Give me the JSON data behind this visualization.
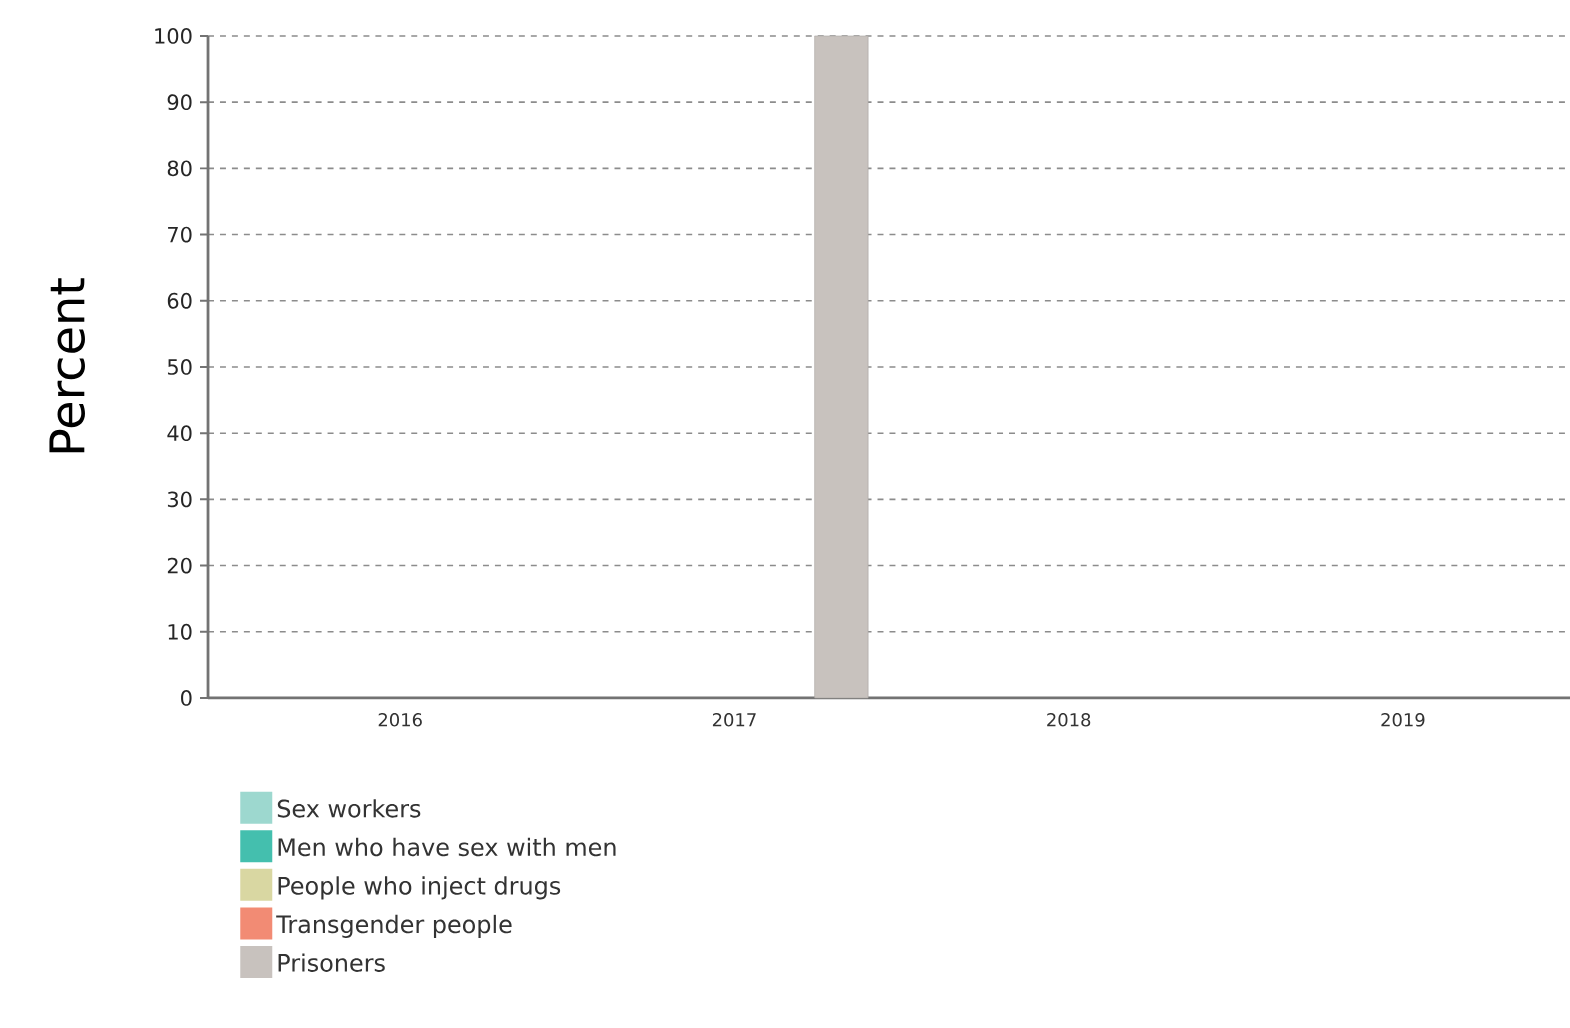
{
  "chart_data": {
    "type": "bar",
    "ylabel": "Percent",
    "categories": [
      "2016",
      "2017",
      "2018",
      "2019"
    ],
    "series": [
      {
        "name": "Sex workers",
        "color": "#9dd8cf",
        "values": [
          null,
          null,
          null,
          null
        ]
      },
      {
        "name": "Men who have sex with men",
        "color": "#44bfae",
        "values": [
          null,
          null,
          null,
          null
        ]
      },
      {
        "name": "People who inject drugs",
        "color": "#d9d7a2",
        "values": [
          null,
          null,
          null,
          null
        ]
      },
      {
        "name": "Transgender people",
        "color": "#f28b74",
        "values": [
          null,
          null,
          null,
          null
        ]
      },
      {
        "name": "Prisoners",
        "color": "#c8c2be",
        "values": [
          null,
          100,
          null,
          null
        ]
      }
    ],
    "ylim": [
      0,
      100
    ],
    "yticks": [
      0,
      10,
      20,
      30,
      40,
      50,
      60,
      70,
      80,
      90,
      100
    ],
    "grid": "y",
    "legend": "bottom"
  }
}
